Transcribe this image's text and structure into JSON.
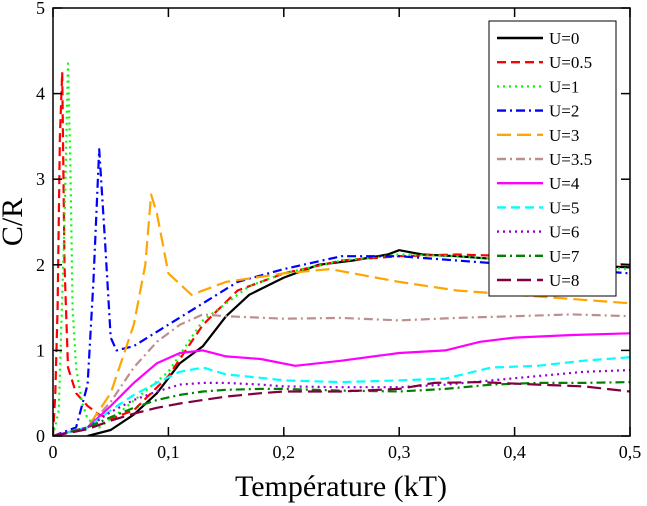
{
  "chart_data": {
    "type": "line",
    "title": "",
    "xlabel": "Température (kT)",
    "ylabel": "C/R",
    "xlim": [
      0,
      0.5
    ],
    "ylim": [
      0,
      5
    ],
    "xticks": [
      0,
      0.1,
      0.2,
      0.3,
      0.4,
      0.5
    ],
    "xtick_labels": [
      "0",
      "0,1",
      "0,2",
      "0,3",
      "0,4",
      "0,5"
    ],
    "yticks": [
      0,
      1,
      2,
      3,
      4,
      5
    ],
    "ytick_labels": [
      "0",
      "1",
      "2",
      "3",
      "4",
      "5"
    ],
    "legend_position": "top-right",
    "series": [
      {
        "name": "U=0",
        "color": "#000000",
        "dash": "solid",
        "x": [
          0.03,
          0.05,
          0.07,
          0.09,
          0.11,
          0.13,
          0.15,
          0.17,
          0.2,
          0.23,
          0.26,
          0.29,
          0.3,
          0.32,
          0.35,
          0.4,
          0.45,
          0.5
        ],
        "y": [
          0.0,
          0.07,
          0.25,
          0.5,
          0.85,
          1.05,
          1.4,
          1.65,
          1.85,
          2.0,
          2.05,
          2.12,
          2.17,
          2.12,
          2.1,
          2.05,
          2.0,
          1.97
        ]
      },
      {
        "name": "U=0.5",
        "color": "#ff0000",
        "dash": "dash",
        "x": [
          0.0,
          0.002,
          0.004,
          0.006,
          0.008,
          0.01,
          0.013,
          0.02,
          0.03,
          0.04,
          0.05,
          0.07,
          0.1,
          0.13,
          0.16,
          0.2,
          0.25,
          0.3,
          0.35,
          0.4,
          0.45,
          0.5
        ],
        "y": [
          0.0,
          0.5,
          1.5,
          3.5,
          4.25,
          2.0,
          0.8,
          0.5,
          0.35,
          0.25,
          0.2,
          0.3,
          0.7,
          1.3,
          1.7,
          1.9,
          2.05,
          2.1,
          2.12,
          2.1,
          2.05,
          2.0
        ]
      },
      {
        "name": "U=1",
        "color": "#00ff00",
        "dash": "dot",
        "x": [
          0.0,
          0.005,
          0.01,
          0.013,
          0.015,
          0.017,
          0.02,
          0.025,
          0.03,
          0.04,
          0.06,
          0.1,
          0.13,
          0.17,
          0.2,
          0.25,
          0.3,
          0.35,
          0.4,
          0.45,
          0.5
        ],
        "y": [
          0.0,
          0.3,
          2.5,
          4.35,
          3.2,
          1.5,
          0.8,
          0.4,
          0.2,
          0.1,
          0.3,
          0.75,
          1.35,
          1.75,
          1.9,
          2.05,
          2.12,
          2.1,
          2.05,
          2.0,
          1.95
        ]
      },
      {
        "name": "U=2",
        "color": "#0000ff",
        "dash": "dashdot",
        "x": [
          0.0,
          0.02,
          0.03,
          0.035,
          0.04,
          0.045,
          0.05,
          0.055,
          0.07,
          0.1,
          0.13,
          0.16,
          0.2,
          0.25,
          0.3,
          0.35,
          0.4,
          0.45,
          0.5
        ],
        "y": [
          0.0,
          0.1,
          0.6,
          1.8,
          3.35,
          2.3,
          1.15,
          1.0,
          1.05,
          1.3,
          1.55,
          1.8,
          1.95,
          2.1,
          2.1,
          2.05,
          2.0,
          1.95,
          1.9
        ]
      },
      {
        "name": "U=3",
        "color": "#ffa500",
        "dash": "longdash",
        "x": [
          0.0,
          0.03,
          0.05,
          0.07,
          0.08,
          0.085,
          0.09,
          0.1,
          0.12,
          0.15,
          0.2,
          0.24,
          0.3,
          0.35,
          0.4,
          0.45,
          0.5
        ],
        "y": [
          0.0,
          0.1,
          0.5,
          1.3,
          2.0,
          2.82,
          2.6,
          1.9,
          1.65,
          1.8,
          1.9,
          1.95,
          1.8,
          1.7,
          1.65,
          1.6,
          1.55
        ]
      },
      {
        "name": "U=3.5",
        "color": "#bc8f8f",
        "dash": "dashdot",
        "x": [
          0.0,
          0.03,
          0.05,
          0.07,
          0.09,
          0.11,
          0.13,
          0.15,
          0.2,
          0.25,
          0.3,
          0.35,
          0.4,
          0.45,
          0.5
        ],
        "y": [
          0.0,
          0.1,
          0.4,
          0.8,
          1.1,
          1.3,
          1.42,
          1.4,
          1.37,
          1.38,
          1.35,
          1.38,
          1.4,
          1.42,
          1.4
        ]
      },
      {
        "name": "U=4",
        "color": "#ff00ff",
        "dash": "solid",
        "x": [
          0.0,
          0.03,
          0.05,
          0.07,
          0.09,
          0.11,
          0.13,
          0.15,
          0.18,
          0.21,
          0.25,
          0.3,
          0.34,
          0.37,
          0.4,
          0.45,
          0.5
        ],
        "y": [
          0.0,
          0.1,
          0.35,
          0.62,
          0.85,
          0.97,
          1.0,
          0.93,
          0.9,
          0.82,
          0.88,
          0.97,
          1.0,
          1.1,
          1.15,
          1.18,
          1.2
        ]
      },
      {
        "name": "U=5",
        "color": "#00ffff",
        "dash": "dash",
        "x": [
          0.0,
          0.03,
          0.05,
          0.07,
          0.09,
          0.11,
          0.13,
          0.15,
          0.18,
          0.2,
          0.25,
          0.3,
          0.34,
          0.38,
          0.42,
          0.46,
          0.5
        ],
        "y": [
          0.0,
          0.1,
          0.3,
          0.48,
          0.62,
          0.75,
          0.8,
          0.72,
          0.68,
          0.65,
          0.63,
          0.65,
          0.67,
          0.8,
          0.82,
          0.88,
          0.92
        ]
      },
      {
        "name": "U=6",
        "color": "#9400d3",
        "dash": "dot",
        "x": [
          0.0,
          0.03,
          0.05,
          0.07,
          0.09,
          0.11,
          0.13,
          0.15,
          0.18,
          0.2,
          0.25,
          0.3,
          0.34,
          0.38,
          0.42,
          0.46,
          0.5
        ],
        "y": [
          0.0,
          0.1,
          0.28,
          0.42,
          0.52,
          0.6,
          0.62,
          0.62,
          0.6,
          0.58,
          0.57,
          0.57,
          0.6,
          0.65,
          0.7,
          0.75,
          0.77
        ]
      },
      {
        "name": "U=7",
        "color": "#008000",
        "dash": "dashdot",
        "x": [
          0.0,
          0.03,
          0.05,
          0.07,
          0.09,
          0.11,
          0.13,
          0.15,
          0.18,
          0.2,
          0.25,
          0.3,
          0.34,
          0.38,
          0.42,
          0.46,
          0.5
        ],
        "y": [
          0.0,
          0.1,
          0.22,
          0.33,
          0.42,
          0.48,
          0.52,
          0.54,
          0.55,
          0.55,
          0.53,
          0.52,
          0.55,
          0.6,
          0.62,
          0.62,
          0.63
        ]
      },
      {
        "name": "U=8",
        "color": "#800040",
        "dash": "longdash",
        "x": [
          0.0,
          0.03,
          0.05,
          0.07,
          0.09,
          0.11,
          0.13,
          0.15,
          0.18,
          0.2,
          0.25,
          0.3,
          0.33,
          0.37,
          0.42,
          0.46,
          0.5
        ],
        "y": [
          0.0,
          0.08,
          0.18,
          0.26,
          0.33,
          0.38,
          0.42,
          0.46,
          0.5,
          0.52,
          0.52,
          0.55,
          0.62,
          0.63,
          0.6,
          0.58,
          0.52
        ]
      }
    ]
  }
}
